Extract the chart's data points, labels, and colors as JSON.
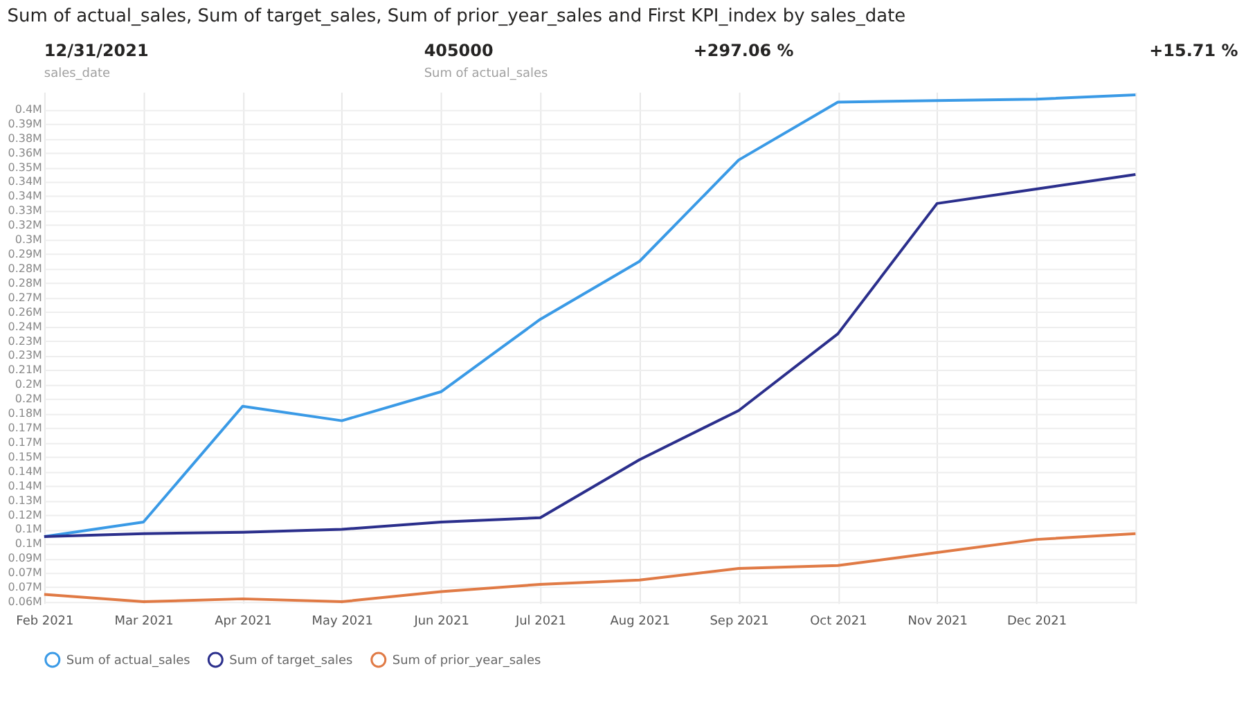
{
  "chart_data": {
    "type": "line",
    "title": "Sum of actual_sales, Sum of target_sales, Sum of prior_year_sales and First KPI_index by sales_date",
    "annotations": [
      "12/31/2021",
      "sales_date",
      "405000",
      "Sum of actual_sales",
      "+297.06 %",
      "+15.71 %"
    ],
    "categories": [
      "Feb 2021",
      "Mar 2021",
      "Apr 2021",
      "May 2021",
      "Jun 2021",
      "Jul 2021",
      "Aug 2021",
      "Sep 2021",
      "Oct 2021",
      "Nov 2021",
      "Dec 2021",
      null
    ],
    "series": [
      {
        "name": "Sum of actual_sales",
        "color": "#3a9ae6",
        "values": [
          100000,
          110000,
          190000,
          180000,
          200000,
          250000,
          290000,
          360000,
          400000,
          401000,
          402000,
          405000
        ]
      },
      {
        "name": "Sum of target_sales",
        "color": "#2b2f8c",
        "values": [
          100000,
          102000,
          103000,
          105000,
          110000,
          113000,
          153000,
          187000,
          240000,
          330000,
          340000,
          350000
        ]
      },
      {
        "name": "Sum of prior_year_sales",
        "color": "#e07a45",
        "values": [
          60000,
          55000,
          57000,
          55000,
          62000,
          67000,
          70000,
          78000,
          80000,
          89000,
          98000,
          102000
        ]
      }
    ],
    "ylim": [
      54000,
      407000
    ],
    "yticks": [
      {
        "value": 55000,
        "label": "0.06M"
      },
      {
        "value": 65000,
        "label": "0.07M"
      },
      {
        "value": 75000,
        "label": "0.07M"
      },
      {
        "value": 85000,
        "label": "0.09M"
      },
      {
        "value": 95000,
        "label": "0.1M"
      },
      {
        "value": 105000,
        "label": "0.1M"
      },
      {
        "value": 115000,
        "label": "0.12M"
      },
      {
        "value": 125000,
        "label": "0.13M"
      },
      {
        "value": 135000,
        "label": "0.14M"
      },
      {
        "value": 145000,
        "label": "0.14M"
      },
      {
        "value": 155000,
        "label": "0.15M"
      },
      {
        "value": 165000,
        "label": "0.17M"
      },
      {
        "value": 175000,
        "label": "0.17M"
      },
      {
        "value": 185000,
        "label": "0.18M"
      },
      {
        "value": 195000,
        "label": "0.2M"
      },
      {
        "value": 205000,
        "label": "0.2M"
      },
      {
        "value": 215000,
        "label": "0.21M"
      },
      {
        "value": 225000,
        "label": "0.23M"
      },
      {
        "value": 235000,
        "label": "0.23M"
      },
      {
        "value": 245000,
        "label": "0.24M"
      },
      {
        "value": 255000,
        "label": "0.26M"
      },
      {
        "value": 265000,
        "label": "0.27M"
      },
      {
        "value": 275000,
        "label": "0.28M"
      },
      {
        "value": 285000,
        "label": "0.28M"
      },
      {
        "value": 295000,
        "label": "0.29M"
      },
      {
        "value": 305000,
        "label": "0.3M"
      },
      {
        "value": 315000,
        "label": "0.32M"
      },
      {
        "value": 325000,
        "label": "0.33M"
      },
      {
        "value": 335000,
        "label": "0.34M"
      },
      {
        "value": 345000,
        "label": "0.34M"
      },
      {
        "value": 355000,
        "label": "0.35M"
      },
      {
        "value": 365000,
        "label": "0.36M"
      },
      {
        "value": 375000,
        "label": "0.38M"
      },
      {
        "value": 385000,
        "label": "0.39M"
      },
      {
        "value": 395000,
        "label": "0.4M"
      }
    ],
    "grid": true,
    "legend": "bottom",
    "marker": "none",
    "line_style": "solid"
  }
}
